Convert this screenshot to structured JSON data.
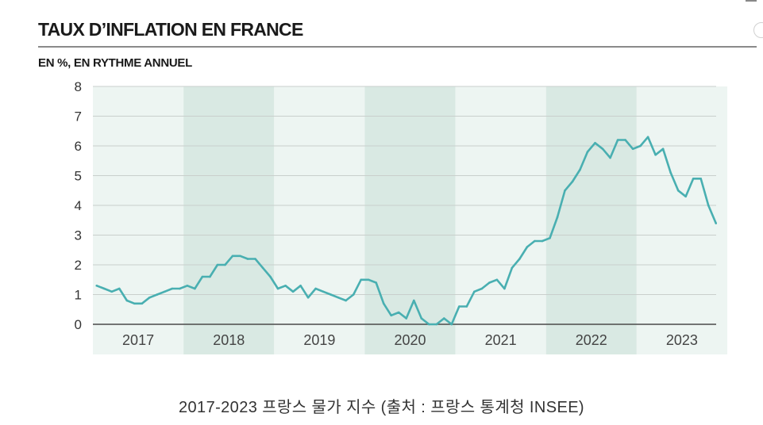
{
  "header": {
    "title": "TAUX D’INFLATION EN FRANCE",
    "subtitle": "EN %, EN RYTHME ANNUEL"
  },
  "caption": "2017-2023 프랑스 물가 지수 (출처 : 프랑스 통계청 INSEE)",
  "colors": {
    "line": "#49afb1",
    "band_light": "#edf5f2",
    "band_dark": "#d9e9e3",
    "grid": "#c9cfcc",
    "axis": "#4a4a4a"
  },
  "chart_data": {
    "type": "line",
    "title": "TAUX D’INFLATION EN FRANCE",
    "ylabel": "EN %, EN RYTHME ANNUEL",
    "xlabel": "",
    "ylim": [
      0,
      8
    ],
    "yticks": [
      "0",
      "1",
      "2",
      "3",
      "4",
      "5",
      "6",
      "7",
      "8"
    ],
    "grid": true,
    "legend": "none",
    "years": [
      "2017",
      "2018",
      "2019",
      "2020",
      "2021",
      "2022",
      "2023"
    ],
    "series": [
      {
        "values": [
          1.3,
          1.2,
          1.1,
          1.2,
          0.8,
          0.7,
          0.7,
          0.9,
          1.0,
          1.1,
          1.2,
          1.2,
          1.3,
          1.2,
          1.6,
          1.6,
          2.0,
          2.0,
          2.3,
          2.3,
          2.2,
          2.2,
          1.9,
          1.6,
          1.2,
          1.3,
          1.1,
          1.3,
          0.9,
          1.2,
          1.1,
          1.0,
          0.9,
          0.8,
          1.0,
          1.5,
          1.5,
          1.4,
          0.7,
          0.3,
          0.4,
          0.2,
          0.8,
          0.2,
          0.0,
          0.0,
          0.2,
          0.0,
          0.6,
          0.6,
          1.1,
          1.2,
          1.4,
          1.5,
          1.2,
          1.9,
          2.2,
          2.6,
          2.8,
          2.8,
          2.9,
          3.6,
          4.5,
          4.8,
          5.2,
          5.8,
          6.1,
          5.9,
          5.6,
          6.2,
          6.2,
          5.9,
          6.0,
          6.3,
          5.7,
          5.9,
          5.1,
          4.5,
          4.3,
          4.9,
          4.9,
          4.0,
          3.4
        ]
      }
    ]
  }
}
